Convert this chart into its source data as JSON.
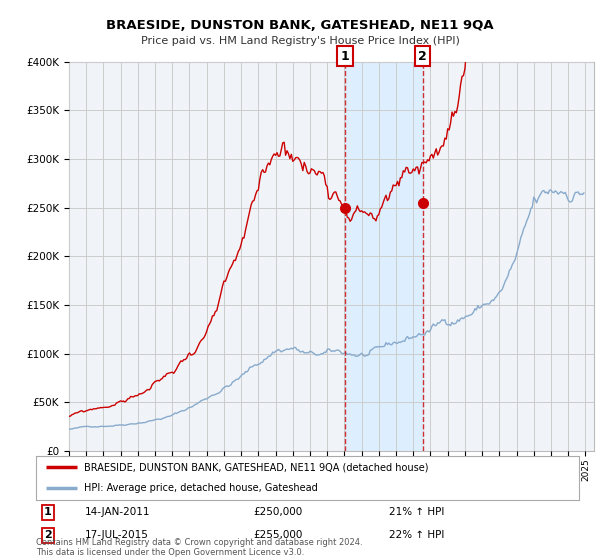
{
  "title": "BRAESIDE, DUNSTON BANK, GATESHEAD, NE11 9QA",
  "subtitle": "Price paid vs. HM Land Registry's House Price Index (HPI)",
  "legend_line1": "BRAESIDE, DUNSTON BANK, GATESHEAD, NE11 9QA (detached house)",
  "legend_line2": "HPI: Average price, detached house, Gateshead",
  "footnote": "Contains HM Land Registry data © Crown copyright and database right 2024.\nThis data is licensed under the Open Government Licence v3.0.",
  "marker1_date": "14-JAN-2011",
  "marker1_price": "£250,000",
  "marker1_hpi": "21% ↑ HPI",
  "marker1_x": 2011.04,
  "marker1_y": 250000,
  "marker2_date": "17-JUL-2015",
  "marker2_price": "£255,000",
  "marker2_hpi": "22% ↑ HPI",
  "marker2_x": 2015.54,
  "marker2_y": 255000,
  "ylim": [
    0,
    400000
  ],
  "xlim_start": 1995.0,
  "xlim_end": 2025.5,
  "red_color": "#cc0000",
  "blue_color": "#88aacc",
  "shade_color": "#ddeeff",
  "grid_color": "#cccccc",
  "background_color": "#ffffff",
  "plot_bg_color": "#f0f4f8"
}
